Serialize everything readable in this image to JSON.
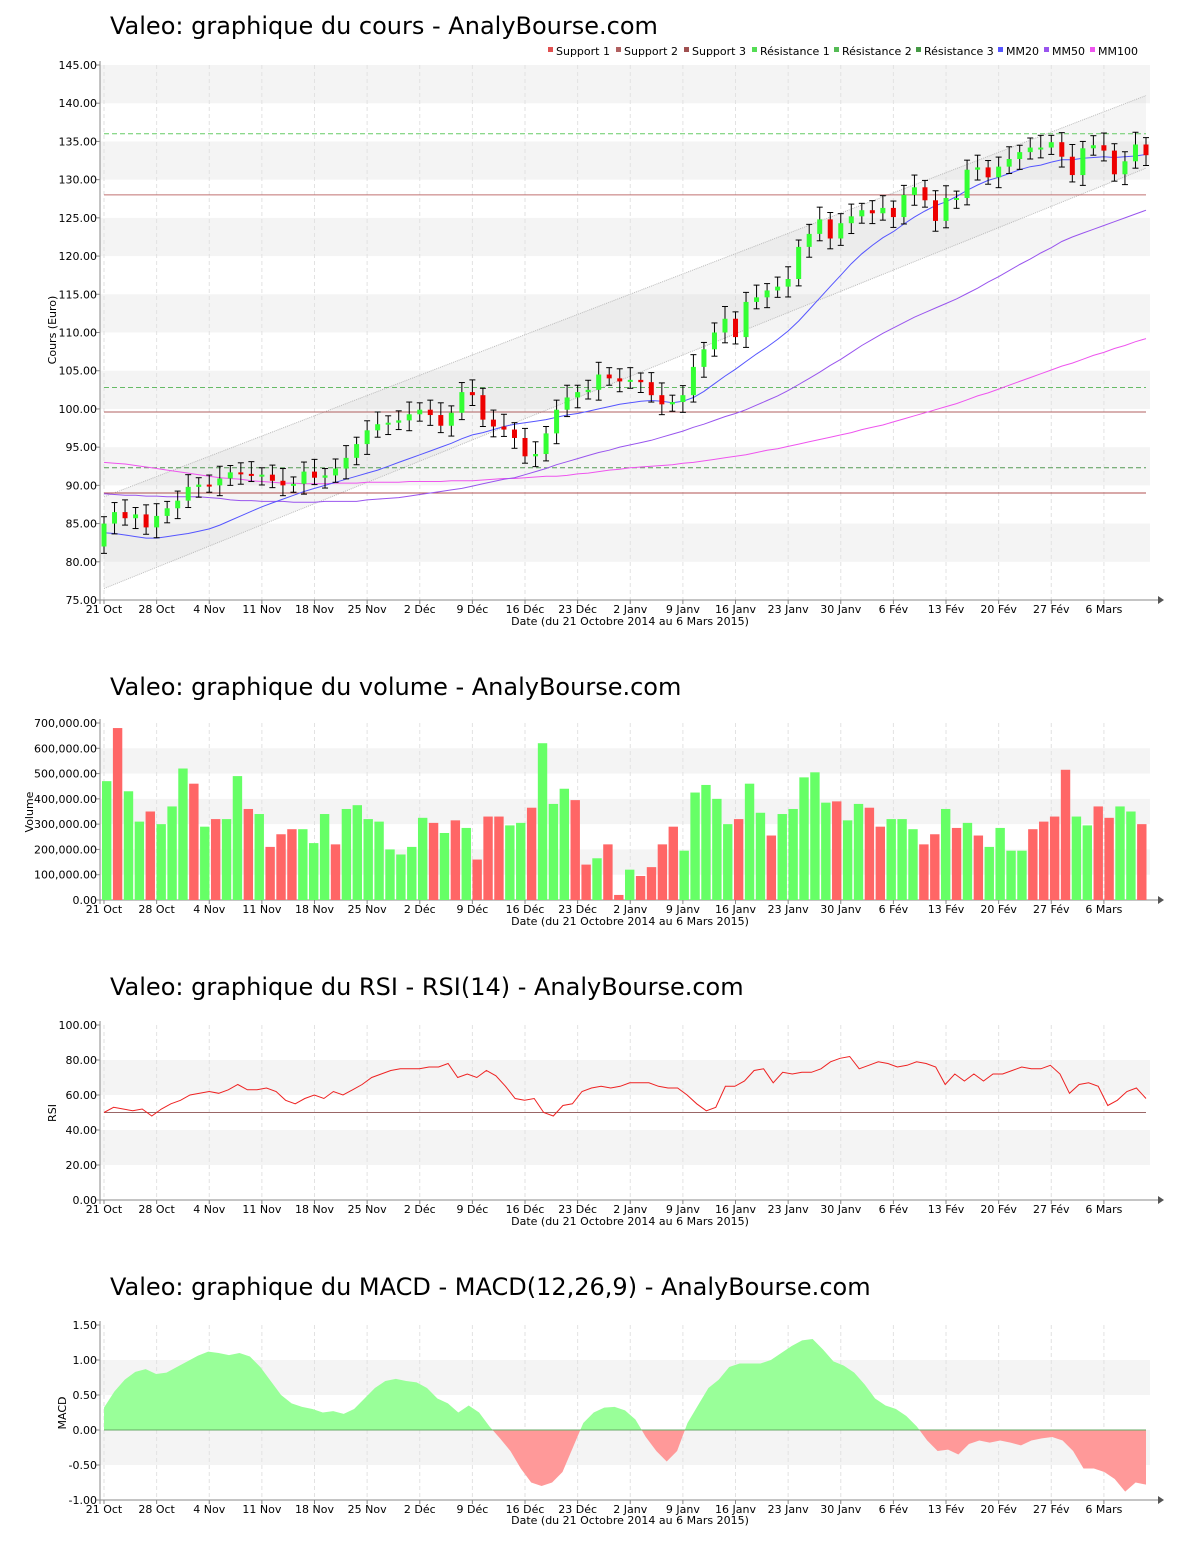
{
  "chart_data": [
    {
      "id": "price",
      "type": "candlestick",
      "title": "Valeo: graphique du cours - AnalyBourse.com",
      "ylabel": "Cours (Euro)",
      "xlabel": "Date (du 21 Octobre 2014 au 6 Mars 2015)",
      "ylim": [
        75,
        145
      ],
      "yticks": [
        75,
        80,
        85,
        90,
        95,
        100,
        105,
        110,
        115,
        120,
        125,
        130,
        135,
        140,
        145
      ],
      "ytick_labels": [
        "75.00",
        "80.00",
        "85.00",
        "90.00",
        "95.00",
        "100.00",
        "105.00",
        "110.00",
        "115.00",
        "120.00",
        "125.00",
        "130.00",
        "135.00",
        "140.00",
        "145.00"
      ],
      "x_tick_labels": [
        "21 Oct",
        "28 Oct",
        "4 Nov",
        "11 Nov",
        "18 Nov",
        "25 Nov",
        "2 Déc",
        "9 Déc",
        "16 Déc",
        "23 Déc",
        "2 Janv",
        "9 Janv",
        "16 Janv",
        "23 Janv",
        "30 Janv",
        "6 Fév",
        "13 Fév",
        "20 Fév",
        "27 Fév",
        "6 Mars"
      ],
      "legend": [
        {
          "name": "Support 1",
          "color": "#e05050"
        },
        {
          "name": "Support 2",
          "color": "#b06060"
        },
        {
          "name": "Support 3",
          "color": "#a05050"
        },
        {
          "name": "Résistance 1",
          "color": "#55dd55"
        },
        {
          "name": "Résistance 2",
          "color": "#55bb55"
        },
        {
          "name": "Résistance 3",
          "color": "#449944"
        },
        {
          "name": "MM20",
          "color": "#5555ff"
        },
        {
          "name": "MM50",
          "color": "#9955ee"
        },
        {
          "name": "MM100",
          "color": "#ee55ee"
        }
      ],
      "levels": {
        "support": [
          128.0,
          99.6,
          89.0
        ],
        "resistance": [
          136.0,
          102.8,
          92.3
        ]
      },
      "close": [
        85.0,
        86.5,
        85.7,
        86.2,
        84.5,
        86.0,
        87.0,
        88.0,
        89.8,
        90.1,
        90.0,
        90.9,
        91.7,
        91.5,
        91.4,
        91.4,
        90.6,
        90.0,
        90.2,
        91.8,
        91.0,
        91.3,
        92.2,
        93.6,
        95.4,
        97.2,
        98.0,
        98.2,
        98.5,
        99.3,
        99.9,
        99.2,
        97.8,
        99.5,
        102.2,
        101.8,
        98.6,
        97.7,
        97.3,
        96.2,
        93.8,
        94.1,
        96.8,
        99.9,
        101.5,
        102.2,
        102.5,
        104.5,
        104.0,
        103.6,
        103.8,
        103.5,
        101.8,
        100.6,
        100.9,
        101.8,
        105.5,
        107.8,
        110.0,
        111.8,
        109.4,
        114.0,
        114.6,
        115.5,
        116.0,
        117.0,
        121.2,
        122.9,
        124.8,
        122.3,
        124.3,
        125.2,
        126.0,
        125.6,
        126.3,
        125.1,
        128.0,
        129.0,
        127.3,
        124.6,
        127.6,
        127.6,
        131.3,
        131.6,
        130.3,
        131.7,
        132.7,
        133.6,
        134.2,
        134.2,
        134.9,
        133.0,
        130.6,
        134.1,
        134.5,
        133.8,
        130.7,
        132.4,
        134.6,
        133.2
      ],
      "ma20": [
        83.8,
        83.7,
        83.5,
        83.3,
        83.1,
        83.1,
        83.3,
        83.5,
        83.7,
        84.0,
        84.3,
        84.8,
        85.4,
        86.0,
        86.6,
        87.2,
        87.7,
        88.2,
        88.7,
        89.2,
        89.6,
        90.0,
        90.4,
        90.8,
        91.2,
        91.6,
        92.0,
        92.5,
        93.0,
        93.5,
        94.0,
        94.5,
        95.0,
        95.5,
        96.1,
        96.6,
        96.9,
        97.3,
        97.7,
        98.0,
        98.2,
        98.4,
        98.6,
        98.9,
        99.2,
        99.4,
        99.7,
        100.0,
        100.3,
        100.6,
        100.8,
        101.0,
        101.1,
        101.0,
        100.8,
        101.0,
        101.5,
        102.3,
        103.3,
        104.3,
        105.2,
        106.2,
        107.2,
        108.1,
        109.1,
        110.2,
        111.5,
        113.0,
        114.5,
        116.0,
        117.5,
        119.0,
        120.3,
        121.4,
        122.4,
        123.2,
        124.2,
        125.1,
        125.9,
        126.6,
        127.1,
        127.8,
        128.6,
        129.3,
        129.9,
        130.3,
        130.8,
        131.3,
        131.7,
        131.9,
        132.3,
        132.6,
        132.6,
        132.8,
        132.9,
        133.0,
        132.9,
        133.0,
        133.1,
        133.3
      ],
      "ma50": [
        88.9,
        88.8,
        88.7,
        88.7,
        88.6,
        88.6,
        88.5,
        88.5,
        88.5,
        88.5,
        88.4,
        88.3,
        88.1,
        88.0,
        88.0,
        87.9,
        87.9,
        87.9,
        87.8,
        87.8,
        87.8,
        87.9,
        87.9,
        87.9,
        87.9,
        88.1,
        88.2,
        88.3,
        88.4,
        88.6,
        88.8,
        89.0,
        89.2,
        89.4,
        89.6,
        89.9,
        90.2,
        90.5,
        90.8,
        91.0,
        91.4,
        91.8,
        92.2,
        92.7,
        93.1,
        93.5,
        93.9,
        94.3,
        94.6,
        95.0,
        95.3,
        95.6,
        95.9,
        96.3,
        96.7,
        97.1,
        97.6,
        98.0,
        98.5,
        99.0,
        99.4,
        99.9,
        100.5,
        101.1,
        101.7,
        102.4,
        103.2,
        104.0,
        104.8,
        105.7,
        106.5,
        107.4,
        108.3,
        109.1,
        109.9,
        110.6,
        111.3,
        112.0,
        112.6,
        113.2,
        113.8,
        114.4,
        115.1,
        115.8,
        116.6,
        117.3,
        118.1,
        118.9,
        119.6,
        120.4,
        121.1,
        121.9,
        122.5,
        123.0,
        123.5,
        124.0,
        124.5,
        125.0,
        125.5,
        126.0
      ],
      "ma100": [
        93.0,
        92.9,
        92.8,
        92.6,
        92.4,
        92.2,
        92.0,
        91.8,
        91.6,
        91.4,
        91.2,
        91.0,
        90.9,
        90.8,
        90.6,
        90.5,
        90.4,
        90.3,
        90.3,
        90.2,
        90.2,
        90.2,
        90.3,
        90.3,
        90.3,
        90.4,
        90.4,
        90.4,
        90.4,
        90.5,
        90.5,
        90.5,
        90.5,
        90.6,
        90.6,
        90.6,
        90.7,
        90.8,
        90.9,
        90.9,
        91.0,
        91.1,
        91.2,
        91.2,
        91.3,
        91.5,
        91.6,
        91.8,
        92.0,
        92.1,
        92.3,
        92.4,
        92.5,
        92.6,
        92.7,
        92.9,
        93.0,
        93.2,
        93.4,
        93.6,
        93.8,
        94.0,
        94.3,
        94.6,
        94.8,
        95.1,
        95.4,
        95.7,
        96.0,
        96.3,
        96.6,
        96.9,
        97.3,
        97.6,
        97.9,
        98.3,
        98.7,
        99.1,
        99.5,
        99.9,
        100.3,
        100.7,
        101.2,
        101.7,
        102.1,
        102.6,
        103.1,
        103.6,
        104.1,
        104.6,
        105.1,
        105.6,
        106.0,
        106.5,
        107.0,
        107.4,
        107.9,
        108.3,
        108.8,
        109.2
      ],
      "channel": {
        "upper": [
          [
            0,
            88.5
          ],
          [
            99,
            141.0
          ]
        ],
        "lower": [
          [
            0,
            76.5
          ],
          [
            99,
            131.5
          ]
        ]
      }
    },
    {
      "id": "volume",
      "type": "bar",
      "title": "Valeo: graphique du volume - AnalyBourse.com",
      "ylabel": "Volume",
      "xlabel": "Date (du 21 Octobre 2014 au 6 Mars 2015)",
      "ylim": [
        0,
        700000
      ],
      "yticks": [
        0,
        100000,
        200000,
        300000,
        400000,
        500000,
        600000,
        700000
      ],
      "ytick_labels": [
        "0.00",
        "100,000.00",
        "200,000.00",
        "300,000.00",
        "400,000.00",
        "500,000.00",
        "600,000.00",
        "700,000.00"
      ],
      "x_tick_labels": [
        "21 Oct",
        "28 Oct",
        "4 Nov",
        "11 Nov",
        "18 Nov",
        "25 Nov",
        "2 Déc",
        "9 Déc",
        "16 Déc",
        "23 Déc",
        "2 Janv",
        "9 Janv",
        "16 Janv",
        "23 Janv",
        "30 Janv",
        "6 Fév",
        "13 Fév",
        "20 Fév",
        "27 Fév",
        "6 Mars"
      ],
      "values": [
        470000,
        680000,
        430000,
        310000,
        350000,
        300000,
        370000,
        520000,
        460000,
        290000,
        320000,
        320000,
        490000,
        360000,
        340000,
        210000,
        260000,
        280000,
        280000,
        225000,
        340000,
        220000,
        360000,
        375000,
        320000,
        310000,
        200000,
        180000,
        210000,
        325000,
        305000,
        265000,
        315000,
        285000,
        160000,
        330000,
        330000,
        295000,
        305000,
        365000,
        620000,
        380000,
        440000,
        395000,
        140000,
        165000,
        220000,
        20000,
        120000,
        95000,
        130000,
        220000,
        290000,
        195000,
        425000,
        455000,
        400000,
        300000,
        320000,
        460000,
        345000,
        255000,
        340000,
        360000,
        485000,
        505000,
        385000,
        390000,
        315000,
        380000,
        365000,
        290000,
        320000,
        320000,
        280000,
        220000,
        260000,
        360000,
        285000,
        305000,
        255000,
        210000,
        285000,
        195000,
        195000,
        280000,
        310000,
        330000,
        515000,
        330000,
        295000,
        370000,
        325000,
        370000,
        350000,
        300000
      ],
      "colors": [
        "g",
        "r",
        "g",
        "g",
        "r",
        "g",
        "g",
        "g",
        "r",
        "g",
        "r",
        "g",
        "g",
        "r",
        "g",
        "r",
        "r",
        "r",
        "g",
        "g",
        "g",
        "r",
        "g",
        "g",
        "g",
        "g",
        "g",
        "g",
        "g",
        "g",
        "r",
        "g",
        "r",
        "g",
        "r",
        "r",
        "r",
        "g",
        "g",
        "r",
        "g",
        "g",
        "g",
        "r",
        "r",
        "g",
        "r",
        "r",
        "g",
        "r",
        "r",
        "r",
        "r",
        "g",
        "g",
        "g",
        "g",
        "g",
        "r",
        "g",
        "g",
        "r",
        "g",
        "g",
        "g",
        "g",
        "g",
        "r",
        "g",
        "g",
        "r",
        "r",
        "g",
        "g",
        "g",
        "r",
        "r",
        "g",
        "r",
        "g",
        "r",
        "g",
        "g",
        "g",
        "g",
        "r",
        "r",
        "r",
        "r",
        "g",
        "g",
        "r",
        "r",
        "g",
        "g",
        "r"
      ]
    },
    {
      "id": "rsi",
      "type": "line",
      "title": "Valeo: graphique du RSI - RSI(14) - AnalyBourse.com",
      "ylabel": "RSI",
      "xlabel": "Date (du 21 Octobre 2014 au 6 Mars 2015)",
      "ylim": [
        0,
        100
      ],
      "yticks": [
        0,
        20,
        40,
        60,
        80,
        100
      ],
      "ytick_labels": [
        "0.00",
        "20.00",
        "40.00",
        "60.00",
        "80.00",
        "100.00"
      ],
      "x_tick_labels": [
        "21 Oct",
        "28 Oct",
        "4 Nov",
        "11 Nov",
        "18 Nov",
        "25 Nov",
        "2 Déc",
        "9 Déc",
        "16 Déc",
        "23 Déc",
        "2 Janv",
        "9 Janv",
        "16 Janv",
        "23 Janv",
        "30 Janv",
        "6 Fév",
        "13 Fév",
        "20 Fév",
        "27 Fév",
        "6 Mars"
      ],
      "reference": 50,
      "values": [
        50,
        53,
        52,
        51,
        52,
        48,
        52,
        55,
        57,
        60,
        61,
        62,
        61,
        63,
        66,
        63,
        63,
        64,
        62,
        57,
        55,
        58,
        60,
        58,
        62,
        60,
        63,
        66,
        70,
        72,
        74,
        75,
        75,
        75,
        76,
        76,
        78,
        70,
        72,
        70,
        74,
        71,
        65,
        58,
        57,
        58,
        50,
        48,
        54,
        55,
        62,
        64,
        65,
        64,
        65,
        67,
        67,
        67,
        65,
        64,
        64,
        60,
        55,
        51,
        53,
        65,
        65,
        68,
        74,
        75,
        67,
        73,
        72,
        73,
        73,
        75,
        79,
        81,
        82,
        75,
        77,
        79,
        78,
        76,
        77,
        79,
        78,
        76,
        66,
        72,
        68,
        72,
        68,
        72,
        72,
        74,
        76,
        75,
        75,
        77,
        72,
        61,
        66,
        67,
        65,
        54,
        57,
        62,
        64,
        58
      ],
      "values_note": ""
    },
    {
      "id": "macd",
      "type": "area",
      "title": "Valeo: graphique du MACD - MACD(12,26,9) - AnalyBourse.com",
      "ylabel": "MACD",
      "xlabel": "Date (du 21 Octobre 2014 au 6 Mars 2015)",
      "ylim": [
        -1.0,
        1.5
      ],
      "yticks": [
        -1.0,
        -0.5,
        0.0,
        0.5,
        1.0,
        1.5
      ],
      "ytick_labels": [
        "-1.00",
        "-0.50",
        "0.00",
        "0.50",
        "1.00",
        "1.50"
      ],
      "x_tick_labels": [
        "21 Oct",
        "28 Oct",
        "4 Nov",
        "11 Nov",
        "18 Nov",
        "25 Nov",
        "2 Déc",
        "9 Déc",
        "16 Déc",
        "23 Déc",
        "2 Janv",
        "9 Janv",
        "16 Janv",
        "23 Janv",
        "30 Janv",
        "6 Fév",
        "13 Fév",
        "20 Fév",
        "27 Fév",
        "6 Mars"
      ],
      "values": [
        0.32,
        0.55,
        0.72,
        0.83,
        0.87,
        0.8,
        0.82,
        0.9,
        0.98,
        1.06,
        1.12,
        1.1,
        1.07,
        1.1,
        1.05,
        0.9,
        0.7,
        0.5,
        0.38,
        0.33,
        0.3,
        0.25,
        0.27,
        0.23,
        0.3,
        0.45,
        0.6,
        0.7,
        0.73,
        0.7,
        0.68,
        0.6,
        0.45,
        0.38,
        0.25,
        0.35,
        0.25,
        0.05,
        -0.12,
        -0.3,
        -0.55,
        -0.75,
        -0.8,
        -0.75,
        -0.6,
        -0.25,
        0.1,
        0.25,
        0.32,
        0.33,
        0.28,
        0.15,
        -0.1,
        -0.3,
        -0.45,
        -0.3,
        0.1,
        0.35,
        0.6,
        0.72,
        0.9,
        0.95,
        0.95,
        0.95,
        1.0,
        1.1,
        1.2,
        1.28,
        1.3,
        1.15,
        0.98,
        0.92,
        0.82,
        0.65,
        0.45,
        0.35,
        0.3,
        0.2,
        0.05,
        -0.15,
        -0.3,
        -0.28,
        -0.35,
        -0.2,
        -0.15,
        -0.18,
        -0.15,
        -0.18,
        -0.22,
        -0.15,
        -0.12,
        -0.1,
        -0.15,
        -0.3,
        -0.55,
        -0.55,
        -0.6,
        -0.7,
        -0.88,
        -0.75,
        -0.78
      ]
    }
  ]
}
